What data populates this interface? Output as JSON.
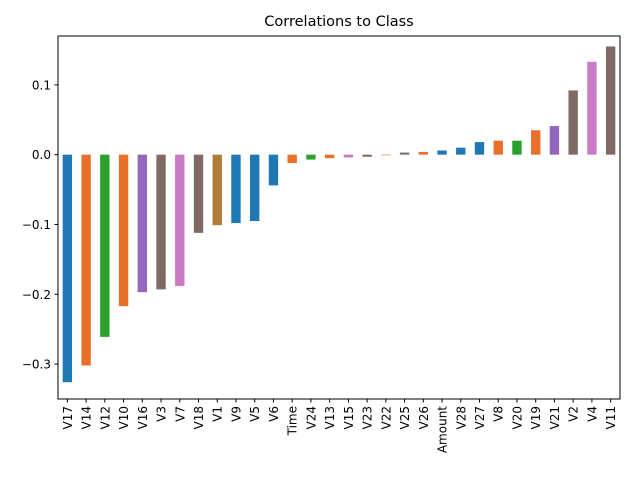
{
  "chart_data": {
    "type": "bar",
    "title": "Correlations to Class",
    "xlabel": "",
    "ylabel": "",
    "ylim": [
      -0.35,
      0.17
    ],
    "yticks": [
      0.1,
      0.0,
      -0.1,
      -0.2,
      -0.3
    ],
    "ytick_labels": [
      "0.1",
      "0.0",
      "−0.1",
      "−0.2",
      "−0.3"
    ],
    "grid": false,
    "categories": [
      "V17",
      "V14",
      "V12",
      "V10",
      "V16",
      "V3",
      "V7",
      "V18",
      "V1",
      "V9",
      "V5",
      "V6",
      "Time",
      "V24",
      "V13",
      "V15",
      "V23",
      "V22",
      "V25",
      "V26",
      "Amount",
      "V28",
      "V27",
      "V8",
      "V20",
      "V19",
      "V21",
      "V2",
      "V4",
      "V11"
    ],
    "values": [
      -0.326,
      -0.302,
      -0.261,
      -0.217,
      -0.197,
      -0.193,
      -0.188,
      -0.112,
      -0.101,
      -0.098,
      -0.095,
      -0.044,
      -0.012,
      -0.007,
      -0.005,
      -0.004,
      -0.003,
      0.0,
      0.003,
      0.004,
      0.006,
      0.01,
      0.018,
      0.02,
      0.02,
      0.035,
      0.041,
      0.092,
      0.133,
      0.155
    ],
    "colors": [
      "#1f77b4",
      "#e8702a",
      "#2ca02c",
      "#e8702a",
      "#9467bd",
      "#7f6b63",
      "#c97ac2",
      "#7f6b63",
      "#b07c3a",
      "#1f77b4",
      "#1f77b4",
      "#1f77b4",
      "#e8702a",
      "#2ca02c",
      "#e8702a",
      "#c97ac2",
      "#7f6b63",
      "#e8702a",
      "#7f6b63",
      "#e8702a",
      "#1f77b4",
      "#1f77b4",
      "#1f77b4",
      "#e8702a",
      "#2ca02c",
      "#e8702a",
      "#9467bd",
      "#7f6b63",
      "#c97ac2",
      "#7f6b63"
    ]
  }
}
